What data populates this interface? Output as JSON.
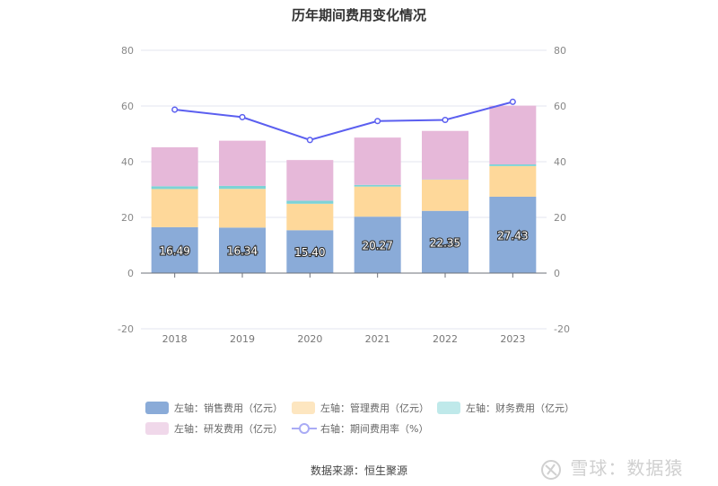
{
  "chart_data": {
    "type": "bar",
    "title": "历年期间费用变化情况",
    "categories": [
      "2018",
      "2019",
      "2020",
      "2021",
      "2022",
      "2023"
    ],
    "stacked": true,
    "series": [
      {
        "name": "左轴：销售费用（亿元）",
        "axis": "left",
        "color": "#8aabd8",
        "values": [
          16.49,
          16.34,
          15.4,
          20.27,
          22.35,
          27.43
        ],
        "labels": [
          "16.49",
          "16.34",
          "15.40",
          "20.27",
          "22.35",
          "27.43"
        ]
      },
      {
        "name": "左轴：管理费用（亿元）",
        "axis": "left",
        "color": "#fed89a",
        "values": [
          13.7,
          13.9,
          9.5,
          10.8,
          11.2,
          11.0
        ]
      },
      {
        "name": "左轴：财务费用（亿元）",
        "axis": "left",
        "color": "#7dd3d6",
        "values": [
          1.0,
          1.1,
          1.1,
          0.6,
          0.1,
          0.6
        ]
      },
      {
        "name": "左轴：研发费用（亿元）",
        "axis": "left",
        "color": "#e6b8d9",
        "values": [
          14.0,
          16.2,
          14.6,
          17.0,
          17.4,
          21.1
        ]
      }
    ],
    "line": {
      "name": "右轴：期间费用率（%）",
      "axis": "right",
      "color": "#5b5ff0",
      "type": "line",
      "values": [
        58.7,
        56.0,
        47.8,
        54.6,
        55.0,
        61.5
      ]
    },
    "left_axis": {
      "ylim": [
        -20,
        80
      ],
      "ticks": [
        "-20",
        "0",
        "20",
        "40",
        "60",
        "80"
      ]
    },
    "right_axis": {
      "ylim": [
        -20,
        80
      ],
      "ticks": [
        "-20",
        "0",
        "20",
        "40",
        "60",
        "80"
      ]
    },
    "grid": true,
    "legend_position": "bottom",
    "legend_colors": [
      "#8aabd8",
      "#fde6c0",
      "#bfe9ea",
      "#f0d8ea"
    ]
  },
  "source": "数据来源：恒生聚源",
  "watermark": "雪球：数据猿"
}
